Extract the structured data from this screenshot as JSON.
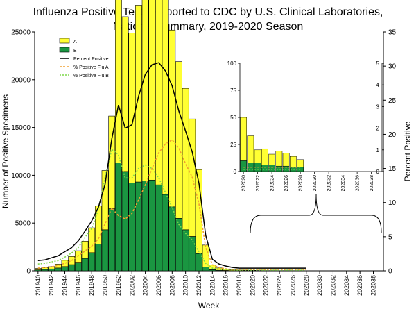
{
  "chart_data": {
    "type": "bar",
    "title_line1": "Influenza Positive Tests Reported to CDC by U.S. Clinical Laboratories,",
    "title_line2": "National Summary, 2019-2020 Season",
    "xlabel": "Week",
    "ylabel_left": "Number of Positive Specimens",
    "ylabel_right": "Percent Positive",
    "ylim_left": [
      0,
      25000
    ],
    "ylim_right": [
      0,
      35
    ],
    "yticks_left": [
      "0",
      "5000",
      "10000",
      "15000",
      "20000",
      "25000"
    ],
    "yticks_right": [
      "0",
      "5",
      "10",
      "15",
      "20",
      "25",
      "30",
      "35"
    ],
    "x_tick_labels": [
      "201940",
      "201942",
      "201944",
      "201946",
      "201948",
      "201950",
      "201952",
      "202002",
      "202004",
      "202006",
      "202008",
      "202010",
      "202012",
      "202014",
      "202016",
      "202018",
      "202020",
      "202022",
      "202024",
      "202026",
      "202028",
      "202030",
      "202032",
      "202034",
      "202036",
      "202038"
    ],
    "legend": [
      "A",
      "B",
      "Percent Positive",
      "% Positive Flu A",
      "% Positive Flu B"
    ],
    "colors": {
      "a": "#ffff33",
      "b": "#1a9641",
      "percent": "#000000",
      "flu_a_pct": "#f0a030",
      "flu_b_pct": "#7fd84a"
    },
    "weeks": [
      "201940",
      "201941",
      "201942",
      "201943",
      "201944",
      "201945",
      "201946",
      "201947",
      "201948",
      "201949",
      "201950",
      "201951",
      "201952",
      "202001",
      "202002",
      "202003",
      "202004",
      "202005",
      "202006",
      "202007",
      "202008",
      "202009",
      "202010",
      "202011",
      "202012",
      "202013",
      "202014",
      "202015",
      "202016",
      "202017",
      "202018",
      "202019",
      "202020",
      "202021",
      "202022",
      "202023",
      "202024",
      "202025",
      "202026",
      "202027",
      "202028",
      "202029",
      "202030",
      "202031",
      "202032",
      "202033",
      "202034",
      "202035",
      "202036",
      "202037",
      "202038",
      "202039"
    ],
    "series": [
      {
        "name": "B",
        "values": [
          100,
          150,
          200,
          300,
          450,
          650,
          900,
          1300,
          1900,
          2800,
          4300,
          6500,
          11300,
          10400,
          9200,
          9300,
          9400,
          9500,
          9000,
          8000,
          6700,
          5500,
          4300,
          3600,
          1800,
          400,
          120,
          60,
          40,
          20,
          15,
          10,
          10,
          8,
          8,
          6,
          6,
          5,
          5,
          4,
          4,
          0,
          0,
          0,
          0,
          0,
          0,
          0,
          0,
          0,
          0,
          0
        ]
      },
      {
        "name": "A",
        "values": [
          150,
          200,
          250,
          400,
          650,
          850,
          1200,
          1800,
          2600,
          4000,
          6200,
          9700,
          17300,
          16200,
          15700,
          18500,
          21200,
          21800,
          21600,
          20500,
          18500,
          16400,
          14800,
          12300,
          8800,
          2300,
          480,
          240,
          120,
          80,
          60,
          50,
          40,
          25,
          12,
          15,
          10,
          14,
          12,
          10,
          7,
          0,
          0,
          0,
          0,
          0,
          0,
          0,
          0,
          0,
          0,
          0
        ]
      },
      {
        "name": "Percent Positive",
        "values": [
          1.5,
          1.6,
          1.9,
          2.2,
          2.8,
          3.4,
          4.4,
          5.8,
          7.3,
          9.3,
          12.7,
          19.3,
          24.3,
          20.9,
          21.4,
          25.6,
          28.8,
          30.2,
          30.5,
          29.3,
          27.1,
          23.4,
          20.5,
          17.4,
          12.8,
          5.2,
          1.7,
          1.0,
          0.7,
          0.5,
          0.4,
          0.4,
          0.4,
          0.4,
          0.4,
          0.4,
          0.4,
          0.4,
          0.4,
          0.4,
          0.4,
          null,
          null,
          null,
          null,
          null,
          null,
          null,
          null,
          null,
          null,
          null
        ]
      },
      {
        "name": "% Positive Flu A",
        "values": [
          0.4,
          0.5,
          0.6,
          0.8,
          1.1,
          1.5,
          2.2,
          2.9,
          3.6,
          4.7,
          6.9,
          9.2,
          8.1,
          7.6,
          8.4,
          10.4,
          12.6,
          15.0,
          17.3,
          18.6,
          19.2,
          18.0,
          15.7,
          13.7,
          9.8,
          3.4,
          0.9,
          0.5,
          0.3,
          0.2,
          0.2,
          0.2,
          0.2,
          0.2,
          0.2,
          0.2,
          0.2,
          0.2,
          0.2,
          0.2,
          0.2,
          null,
          null,
          null,
          null,
          null,
          null,
          null,
          null,
          null,
          null,
          null
        ]
      },
      {
        "name": "% Positive Flu B",
        "values": [
          1.0,
          1.1,
          1.3,
          1.5,
          2.0,
          2.6,
          3.4,
          4.9,
          6.2,
          9.0,
          13.7,
          17.8,
          17.0,
          13.6,
          13.6,
          15.0,
          15.5,
          15.0,
          13.6,
          11.5,
          9.3,
          6.8,
          5.5,
          4.5,
          2.8,
          1.1,
          0.4,
          0.2,
          0.2,
          0.1,
          0.1,
          0.1,
          0.1,
          0.1,
          0.1,
          0.1,
          0.1,
          0.1,
          0.1,
          0.1,
          0.1,
          null,
          null,
          null,
          null,
          null,
          null,
          null,
          null,
          null,
          null,
          null
        ]
      }
    ],
    "inset": {
      "ylim_left": [
        0,
        100
      ],
      "ylim_right": [
        0,
        5
      ],
      "yticks_left": [
        "0",
        "25",
        "50",
        "75",
        "100"
      ],
      "yticks_right": [
        "0",
        "1",
        "2",
        "3",
        "4",
        "5"
      ],
      "x_tick_labels": [
        "202020",
        "202022",
        "202024",
        "202026",
        "202028",
        "202030",
        "202032",
        "202034",
        "202036",
        "202038"
      ]
    }
  }
}
